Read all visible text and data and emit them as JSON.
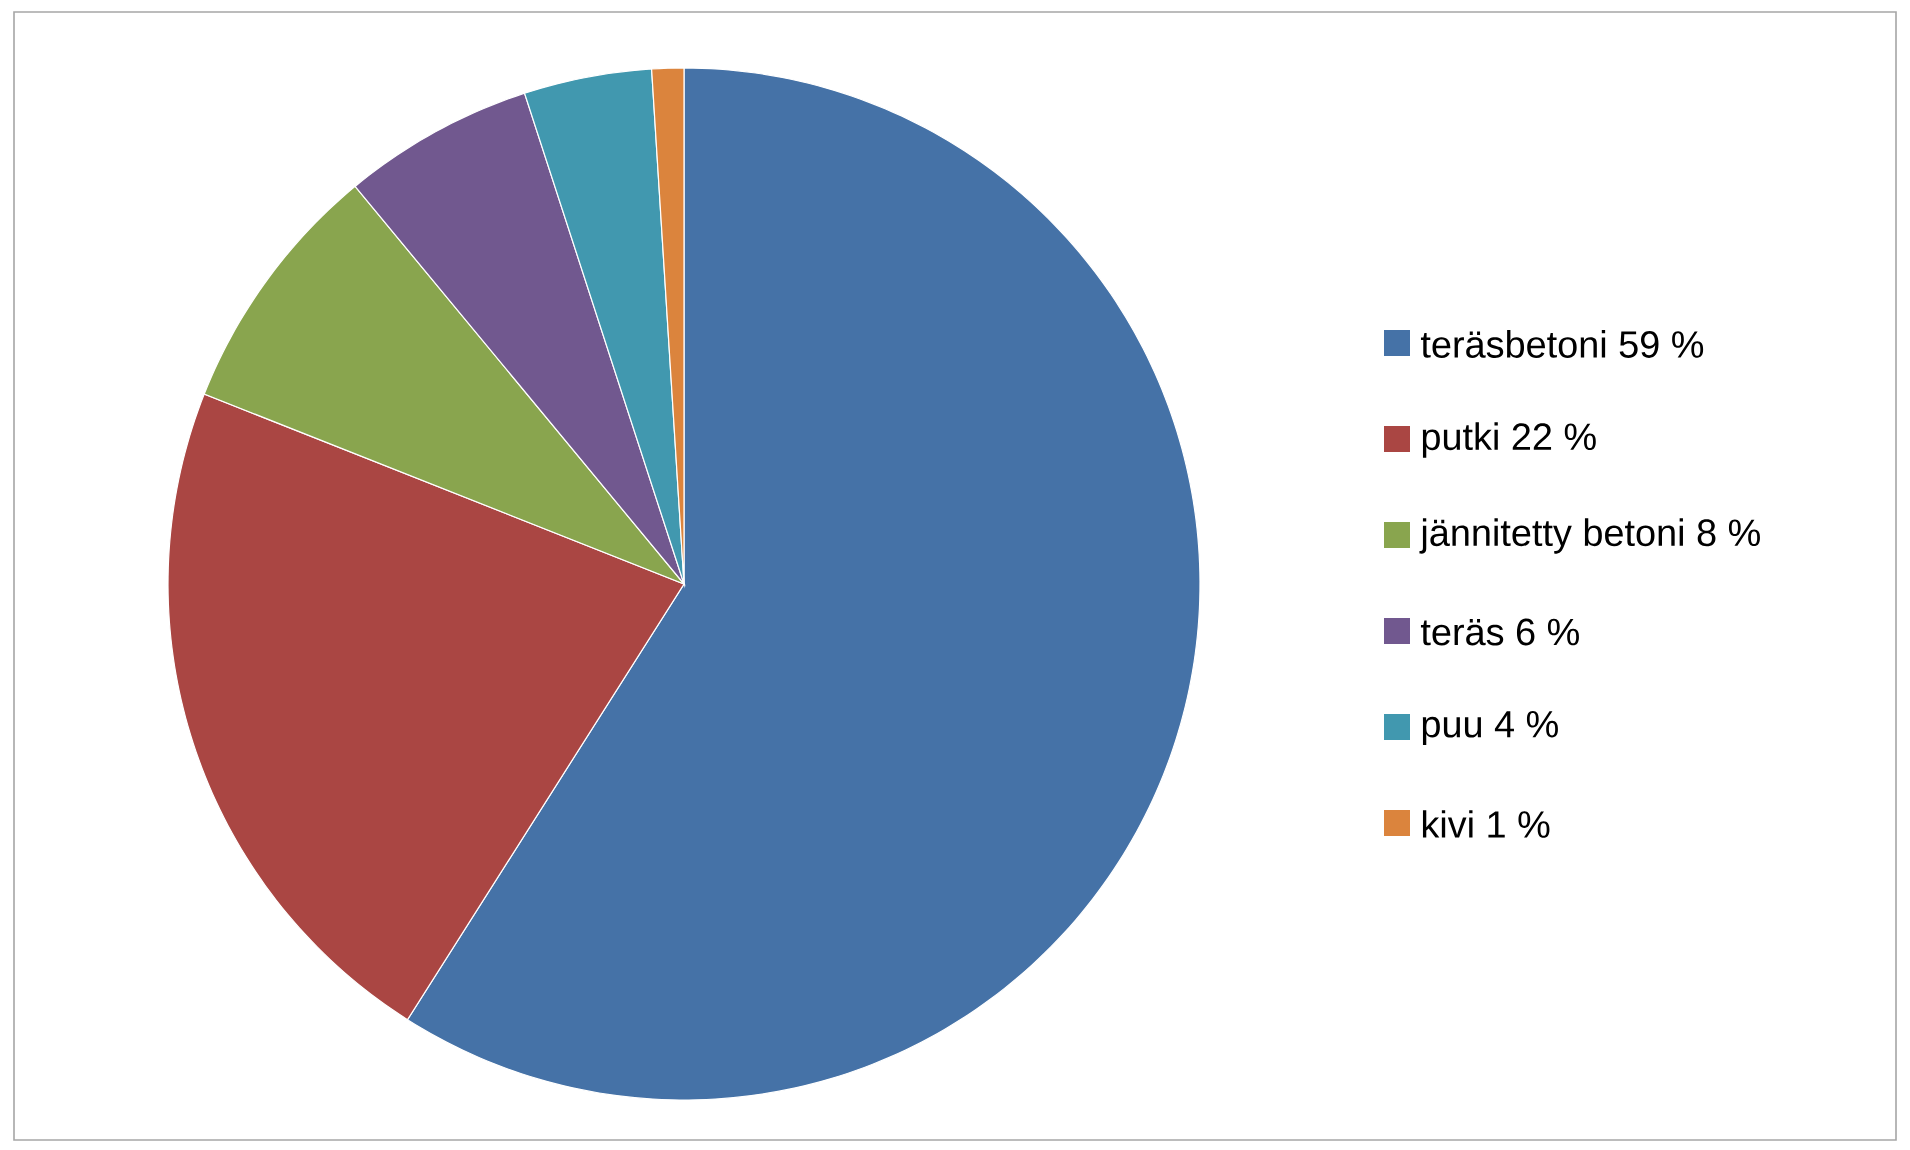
{
  "chart_data": {
    "type": "pie",
    "categories": [
      "teräsbetoni 59 %",
      "putki 22 %",
      "jännitetty betoni 8 %",
      "teräs 6 %",
      "puu 4 %",
      "kivi 1 %"
    ],
    "values": [
      59,
      22,
      8,
      6,
      4,
      1
    ],
    "colors": [
      "#4572a7",
      "#aa4643",
      "#89a54e",
      "#71588f",
      "#4198af",
      "#db843d"
    ],
    "legend": "right"
  }
}
